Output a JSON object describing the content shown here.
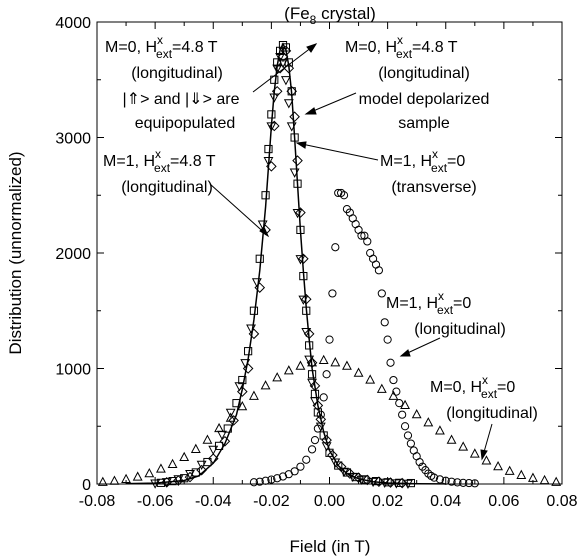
{
  "chart_data": {
    "type": "scatter",
    "title": "(Fe",
    "title_sub": "8",
    "title_tail": " crystal)",
    "xlabel": "Field (in T)",
    "ylabel": "Distribution (unnormalized)",
    "xlim": [
      -0.08,
      0.08
    ],
    "ylim": [
      0,
      4000
    ],
    "xticks": [
      "-0.08",
      "-0.06",
      "-0.04",
      "-0.02",
      "0.00",
      "0.02",
      "0.04",
      "0.06",
      "0.08"
    ],
    "yticks": [
      "0",
      "1000",
      "2000",
      "3000",
      "4000"
    ],
    "grid": false,
    "series": [
      {
        "marker": "square",
        "x": [
          -0.058,
          -0.054,
          -0.05,
          -0.046,
          -0.042,
          -0.038,
          -0.035,
          -0.032,
          -0.03,
          -0.028,
          -0.026,
          -0.024,
          -0.022,
          -0.021,
          -0.02,
          -0.019,
          -0.018,
          -0.017,
          -0.016,
          -0.015,
          -0.014,
          -0.013,
          -0.012,
          -0.011,
          -0.01,
          -0.009,
          -0.008,
          -0.007,
          -0.006,
          -0.005,
          -0.004,
          -0.002,
          0.0,
          0.003,
          0.006,
          0.009,
          0.012,
          0.016,
          0.02,
          0.024,
          0.028
        ],
        "y": [
          10,
          25,
          50,
          100,
          190,
          330,
          480,
          700,
          900,
          1150,
          1500,
          1950,
          2500,
          2900,
          3200,
          3500,
          3650,
          3750,
          3800,
          3780,
          3650,
          3400,
          3000,
          2600,
          2200,
          1800,
          1500,
          1200,
          950,
          780,
          620,
          420,
          270,
          160,
          100,
          60,
          40,
          25,
          15,
          10,
          8
        ]
      },
      {
        "marker": "diamond",
        "x": [
          -0.056,
          -0.052,
          -0.048,
          -0.044,
          -0.04,
          -0.036,
          -0.033,
          -0.03,
          -0.028,
          -0.026,
          -0.024,
          -0.022,
          -0.02,
          -0.019,
          -0.018,
          -0.017,
          -0.016,
          -0.015,
          -0.014,
          -0.013,
          -0.012,
          -0.011,
          -0.01,
          -0.009,
          -0.008,
          -0.007,
          -0.006,
          -0.005,
          -0.004,
          -0.003,
          -0.001,
          0.001,
          0.004,
          0.007,
          0.01,
          0.013,
          0.017,
          0.021,
          0.025
        ],
        "y": [
          15,
          30,
          60,
          120,
          220,
          370,
          550,
          800,
          1000,
          1300,
          1700,
          2200,
          2750,
          3100,
          3400,
          3600,
          3700,
          3750,
          3600,
          3400,
          3180,
          2800,
          2350,
          1950,
          1600,
          1300,
          1050,
          850,
          680,
          560,
          380,
          250,
          150,
          90,
          55,
          35,
          20,
          12,
          8
        ]
      },
      {
        "marker": "triangle-down",
        "x": [
          -0.06,
          -0.056,
          -0.052,
          -0.048,
          -0.044,
          -0.04,
          -0.037,
          -0.034,
          -0.031,
          -0.029,
          -0.027,
          -0.025,
          -0.023,
          -0.021,
          -0.02,
          -0.019,
          -0.018,
          -0.017,
          -0.016,
          -0.015,
          -0.014,
          -0.013,
          -0.012,
          -0.011,
          -0.01,
          -0.009,
          -0.008,
          -0.007,
          -0.006,
          -0.005,
          -0.003,
          -0.001,
          0.002,
          0.005,
          0.008,
          0.011,
          0.015,
          0.019,
          0.023,
          0.027
        ],
        "y": [
          8,
          20,
          45,
          90,
          170,
          300,
          430,
          620,
          850,
          1050,
          1350,
          1750,
          2250,
          2800,
          3100,
          3350,
          3600,
          3700,
          3650,
          3500,
          3300,
          3100,
          2700,
          2350,
          1950,
          1600,
          1320,
          1080,
          880,
          720,
          500,
          330,
          190,
          110,
          65,
          40,
          22,
          14,
          9,
          6
        ]
      },
      {
        "marker": "circle",
        "x": [
          -0.026,
          -0.024,
          -0.022,
          -0.02,
          -0.018,
          -0.016,
          -0.014,
          -0.012,
          -0.01,
          -0.008,
          -0.006,
          -0.005,
          -0.004,
          -0.003,
          -0.002,
          -0.001,
          0.0,
          0.001,
          0.002,
          0.003,
          0.004,
          0.005,
          0.006,
          0.007,
          0.008,
          0.009,
          0.01,
          0.011,
          0.012,
          0.013,
          0.014,
          0.015,
          0.016,
          0.017,
          0.018,
          0.019,
          0.02,
          0.021,
          0.022,
          0.023,
          0.024,
          0.025,
          0.026,
          0.027,
          0.028,
          0.029,
          0.03,
          0.031,
          0.032,
          0.033,
          0.034,
          0.035,
          0.036,
          0.038,
          0.04,
          0.042,
          0.044,
          0.046,
          0.048,
          0.05
        ],
        "y": [
          15,
          20,
          28,
          38,
          50,
          65,
          85,
          110,
          150,
          210,
          300,
          380,
          480,
          600,
          750,
          950,
          1250,
          1650,
          2050,
          2520,
          2520,
          2500,
          2380,
          2350,
          2300,
          2250,
          2200,
          2150,
          2150,
          2100,
          2000,
          1950,
          1900,
          1850,
          1650,
          1400,
          1250,
          1050,
          900,
          800,
          700,
          600,
          500,
          420,
          350,
          290,
          240,
          190,
          150,
          120,
          90,
          70,
          55,
          40,
          28,
          20,
          14,
          10,
          8,
          6
        ]
      },
      {
        "marker": "triangle-up",
        "x": [
          -0.078,
          -0.074,
          -0.07,
          -0.066,
          -0.062,
          -0.058,
          -0.054,
          -0.05,
          -0.046,
          -0.042,
          -0.038,
          -0.034,
          -0.03,
          -0.026,
          -0.022,
          -0.018,
          -0.014,
          -0.01,
          -0.006,
          -0.002,
          0.002,
          0.006,
          0.01,
          0.014,
          0.018,
          0.022,
          0.026,
          0.03,
          0.034,
          0.038,
          0.042,
          0.046,
          0.05,
          0.054,
          0.058,
          0.062,
          0.066,
          0.07,
          0.074,
          0.078
        ],
        "y": [
          15,
          25,
          40,
          60,
          90,
          130,
          170,
          230,
          300,
          380,
          480,
          570,
          670,
          760,
          850,
          920,
          980,
          1020,
          1050,
          1070,
          1050,
          1020,
          960,
          900,
          820,
          760,
          680,
          600,
          530,
          460,
          380,
          320,
          260,
          200,
          150,
          110,
          75,
          50,
          30,
          15
        ]
      }
    ],
    "fit_line": {
      "x": [
        -0.07,
        -0.06,
        -0.05,
        -0.045,
        -0.04,
        -0.036,
        -0.032,
        -0.03,
        -0.028,
        -0.026,
        -0.024,
        -0.022,
        -0.021,
        -0.02,
        -0.019,
        -0.018,
        -0.017,
        -0.016,
        -0.015,
        -0.014,
        -0.013,
        -0.012,
        -0.011,
        -0.01,
        -0.009,
        -0.008,
        -0.007,
        -0.006,
        -0.004,
        -0.002,
        0.0,
        0.003,
        0.006,
        0.01,
        0.015,
        0.02,
        0.03,
        0.04
      ],
      "y": [
        3,
        8,
        30,
        70,
        180,
        350,
        600,
        820,
        1080,
        1420,
        1850,
        2400,
        2750,
        3100,
        3400,
        3620,
        3760,
        3810,
        3760,
        3620,
        3380,
        3000,
        2600,
        2200,
        1850,
        1520,
        1250,
        1000,
        680,
        450,
        290,
        160,
        90,
        45,
        20,
        9,
        3,
        1
      ]
    },
    "annotations": [
      {
        "id": "a1",
        "line1": [
          "M=0, H",
          "x",
          "ext",
          "=4.8 T"
        ],
        "line2": "(longitudinal)",
        "line3": "|⇑> and |⇓> are",
        "line4": "equipopulated"
      },
      {
        "id": "a2",
        "line1": [
          "M=0, H",
          "x",
          "ext",
          "=4.8 T"
        ],
        "line2": "(longitudinal)",
        "line3": "model depolarized",
        "line4": "sample"
      },
      {
        "id": "a3",
        "line1": [
          "M=1, H",
          "x",
          "ext",
          "=4.8 T"
        ],
        "line2": "(longitudinal)"
      },
      {
        "id": "a4",
        "line1": [
          "M=1, H",
          "x",
          "ext",
          "=0"
        ],
        "line2": "(transverse)"
      },
      {
        "id": "a5",
        "line1": [
          "M=1, H",
          "x",
          "ext",
          "=0"
        ],
        "line2": "(longitudinal)"
      },
      {
        "id": "a6",
        "line1": [
          "M=0, H",
          "x",
          "ext",
          "=0"
        ],
        "line2": "(longitudinal)"
      }
    ]
  }
}
